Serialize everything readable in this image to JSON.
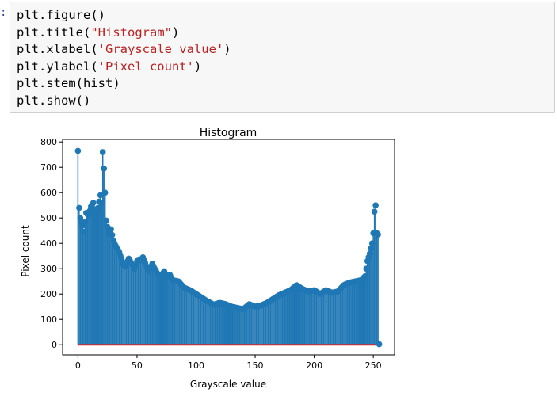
{
  "cell": {
    "prompt": ":",
    "lines": [
      {
        "pre": "plt.figure()",
        "str": "",
        "post": ""
      },
      {
        "pre": "plt.title(",
        "str": "\"Histogram\"",
        "post": ")"
      },
      {
        "pre": "plt.xlabel(",
        "str": "'Grayscale value'",
        "post": ")"
      },
      {
        "pre": "plt.ylabel(",
        "str": "'Pixel count'",
        "post": ")"
      },
      {
        "pre": "plt.stem(hist)",
        "str": "",
        "post": ""
      },
      {
        "pre": "plt.show()",
        "str": "",
        "post": ""
      }
    ]
  },
  "colors": {
    "stem": "#1f77b4",
    "baseline": "#d62728"
  },
  "chart_data": {
    "type": "stem",
    "title": "Histogram",
    "xlabel": "Grayscale value",
    "ylabel": "Pixel count",
    "xlim": [
      -13,
      268
    ],
    "ylim": [
      -40,
      810
    ],
    "xticks": [
      0,
      50,
      100,
      150,
      200,
      250
    ],
    "yticks": [
      0,
      100,
      200,
      300,
      400,
      500,
      600,
      700,
      800
    ],
    "baseline": 0,
    "anchors": [
      [
        0,
        765
      ],
      [
        1,
        540
      ],
      [
        2,
        500
      ],
      [
        4,
        470
      ],
      [
        5,
        445
      ],
      [
        7,
        520
      ],
      [
        9,
        510
      ],
      [
        11,
        545
      ],
      [
        13,
        560
      ],
      [
        15,
        510
      ],
      [
        17,
        540
      ],
      [
        19,
        590
      ],
      [
        20,
        560
      ],
      [
        21,
        760
      ],
      [
        22,
        695
      ],
      [
        23,
        600
      ],
      [
        24,
        490
      ],
      [
        26,
        440
      ],
      [
        28,
        455
      ],
      [
        30,
        410
      ],
      [
        33,
        380
      ],
      [
        35,
        365
      ],
      [
        38,
        320
      ],
      [
        40,
        310
      ],
      [
        43,
        340
      ],
      [
        46,
        315
      ],
      [
        48,
        300
      ],
      [
        50,
        330
      ],
      [
        53,
        335
      ],
      [
        55,
        345
      ],
      [
        58,
        310
      ],
      [
        60,
        290
      ],
      [
        63,
        320
      ],
      [
        65,
        300
      ],
      [
        68,
        275
      ],
      [
        70,
        265
      ],
      [
        73,
        290
      ],
      [
        75,
        270
      ],
      [
        78,
        275
      ],
      [
        80,
        255
      ],
      [
        85,
        250
      ],
      [
        90,
        225
      ],
      [
        95,
        215
      ],
      [
        100,
        200
      ],
      [
        105,
        185
      ],
      [
        110,
        170
      ],
      [
        115,
        158
      ],
      [
        120,
        165
      ],
      [
        125,
        160
      ],
      [
        130,
        150
      ],
      [
        135,
        145
      ],
      [
        140,
        140
      ],
      [
        145,
        160
      ],
      [
        150,
        150
      ],
      [
        155,
        155
      ],
      [
        160,
        165
      ],
      [
        165,
        180
      ],
      [
        170,
        195
      ],
      [
        175,
        205
      ],
      [
        180,
        215
      ],
      [
        185,
        235
      ],
      [
        190,
        220
      ],
      [
        195,
        210
      ],
      [
        200,
        215
      ],
      [
        205,
        200
      ],
      [
        210,
        215
      ],
      [
        215,
        205
      ],
      [
        220,
        210
      ],
      [
        225,
        235
      ],
      [
        230,
        245
      ],
      [
        235,
        250
      ],
      [
        240,
        255
      ],
      [
        243,
        270
      ],
      [
        245,
        330
      ],
      [
        247,
        360
      ],
      [
        249,
        400
      ],
      [
        250,
        440
      ],
      [
        251,
        525
      ],
      [
        252,
        550
      ],
      [
        253,
        440
      ],
      [
        254,
        435
      ],
      [
        255,
        2
      ]
    ]
  }
}
